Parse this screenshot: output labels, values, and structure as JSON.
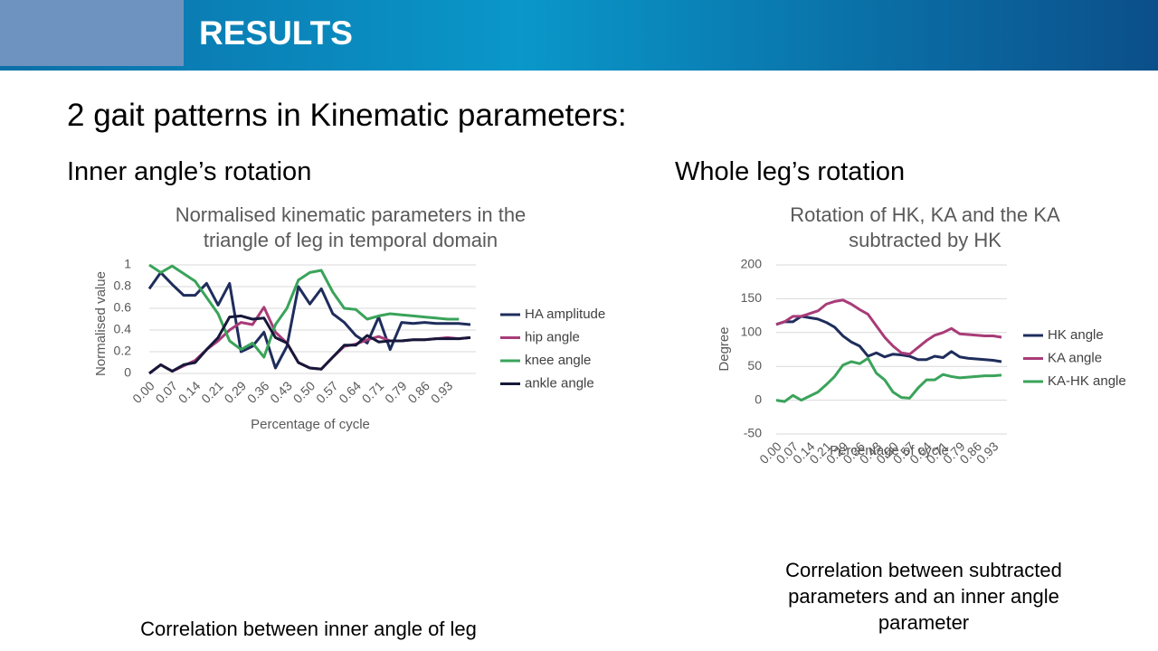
{
  "header": {
    "title": "RESULTS"
  },
  "heading": "2 gait patterns in Kinematic parameters:",
  "left": {
    "subheading": "Inner angle’s rotation",
    "caption": "Correlation between inner angle of leg"
  },
  "right": {
    "subheading": "Whole leg’s rotation",
    "caption": "Correlation between subtracted parameters and an inner angle parameter"
  },
  "chart_data": [
    {
      "type": "line",
      "title": "Normalised kinematic parameters in the triangle of leg in temporal domain",
      "x_label": "Percentage of cycle",
      "y_label": "Normalised value",
      "categories": [
        "0.00",
        null,
        "0.07",
        null,
        "0.14",
        null,
        "0.21",
        null,
        "0.29",
        null,
        "0.36",
        null,
        "0.43",
        null,
        "0.50",
        null,
        "0.57",
        null,
        "0.64",
        null,
        "0.71",
        null,
        "0.79",
        null,
        "0.86",
        null,
        "0.93",
        null,
        null
      ],
      "series": [
        {
          "name": "HA amplitude",
          "color": "#1f2d5c",
          "values": [
            0.78,
            0.93,
            0.82,
            0.72,
            0.72,
            0.83,
            0.63,
            0.83,
            0.2,
            0.25,
            0.38,
            0.05,
            0.25,
            0.8,
            0.64,
            0.78,
            0.55,
            0.47,
            0.35,
            0.28,
            0.52,
            0.22,
            0.47,
            0.46,
            0.47,
            0.46,
            0.46,
            0.46,
            0.45
          ]
        },
        {
          "name": "hip angle",
          "color": "#a83c78",
          "values": [
            0,
            0.08,
            0.02,
            0.07,
            0.12,
            0.22,
            0.3,
            0.4,
            0.47,
            0.45,
            0.61,
            0.38,
            0.28,
            0.1,
            0.05,
            0.04,
            0.15,
            0.25,
            0.27,
            0.31,
            0.34,
            0.3,
            0.3,
            0.31,
            0.31,
            0.32,
            0.33,
            0.32,
            0.33
          ]
        },
        {
          "name": "knee angle",
          "color": "#3aa35a",
          "values": [
            1,
            0.93,
            0.99,
            0.92,
            0.85,
            0.7,
            0.55,
            0.3,
            0.22,
            0.28,
            0.15,
            0.45,
            0.6,
            0.86,
            0.93,
            0.95,
            0.75,
            0.6,
            0.59,
            0.5,
            0.53,
            0.55,
            0.54,
            0.53,
            0.52,
            0.51,
            0.5,
            0.5,
            null
          ]
        },
        {
          "name": "ankle angle",
          "color": "#16183a",
          "values": [
            0,
            0.08,
            0.02,
            0.08,
            0.1,
            0.22,
            0.33,
            0.52,
            0.53,
            0.5,
            0.51,
            0.33,
            0.28,
            0.1,
            0.05,
            0.04,
            0.15,
            0.26,
            0.26,
            0.35,
            0.29,
            0.3,
            0.3,
            0.31,
            0.31,
            0.32,
            0.32,
            0.32,
            0.33
          ]
        }
      ],
      "ylim": [
        0,
        1
      ],
      "yticks": [
        0,
        0.2,
        0.4,
        0.6,
        0.8,
        1
      ],
      "grid": true,
      "legend": "right"
    },
    {
      "type": "line",
      "title": "Rotation of HK, KA and the KA subtracted by HK",
      "x_label": "Percentage of cycle",
      "y_label": "Degree",
      "categories": [
        "0.00",
        null,
        "0.07",
        null,
        "0.14",
        null,
        "0.21",
        null,
        "0.29",
        null,
        "0.36",
        null,
        "0.43",
        null,
        "0.50",
        null,
        "0.57",
        null,
        "0.64",
        null,
        "0.71",
        null,
        "0.79",
        null,
        "0.86",
        null,
        "0.93",
        null
      ],
      "series": [
        {
          "name": "HK angle",
          "color": "#1f2d5c",
          "values": [
            112,
            116,
            116,
            124,
            122,
            120,
            115,
            108,
            95,
            86,
            80,
            65,
            70,
            64,
            68,
            67,
            65,
            60,
            60,
            65,
            63,
            72,
            64,
            62,
            61,
            60,
            59,
            57
          ]
        },
        {
          "name": "KA angle",
          "color": "#a83c78",
          "values": [
            112,
            116,
            124,
            124,
            128,
            132,
            142,
            146,
            148,
            142,
            134,
            127,
            110,
            93,
            80,
            70,
            68,
            78,
            88,
            96,
            100,
            106,
            98,
            97,
            96,
            95,
            95,
            93
          ]
        },
        {
          "name": "KA-HK angle",
          "color": "#3aa35a",
          "values": [
            0,
            -2,
            7,
            0,
            6,
            12,
            23,
            35,
            52,
            57,
            54,
            62,
            40,
            30,
            12,
            4,
            3,
            18,
            30,
            30,
            38,
            35,
            33,
            34,
            35,
            36,
            36,
            37
          ]
        }
      ],
      "ylim": [
        -50,
        200
      ],
      "yticks": [
        -50,
        0,
        50,
        100,
        150,
        200
      ],
      "grid": true,
      "legend": "right"
    }
  ]
}
